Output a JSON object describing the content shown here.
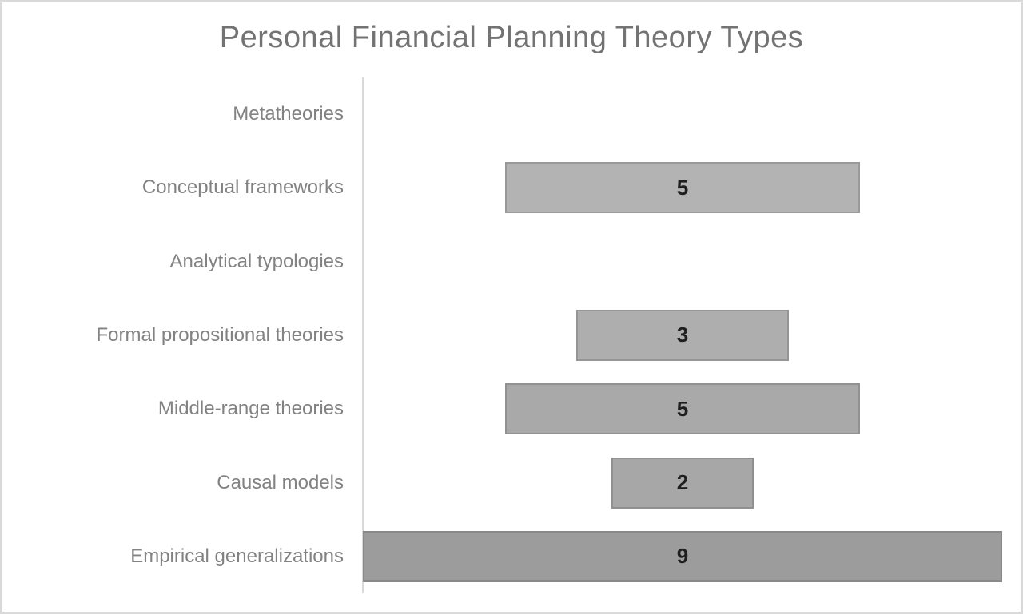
{
  "chart_data": {
    "type": "bar",
    "subtype": "funnel-centered-horizontal-bars",
    "title": "Personal Financial Planning Theory Types",
    "categories": [
      "Metatheories",
      "Conceptual frameworks",
      "Analytical typologies",
      "Formal propositional theories",
      "Middle-range theories",
      "Causal models",
      "Empirical generalizations"
    ],
    "values": [
      null,
      5,
      null,
      3,
      5,
      2,
      9
    ],
    "data_labels": [
      "",
      "5",
      "",
      "3",
      "5",
      "2",
      "9"
    ],
    "xlim": [
      0,
      9
    ],
    "grid": "off",
    "legend": "none",
    "bar_fill_colors": [
      null,
      "#b3b3b3",
      null,
      "#aeaeae",
      "#a9a9a9",
      "#a7a7a7",
      "#9c9c9c"
    ],
    "bar_border_colors": [
      null,
      "#999999",
      null,
      "#959595",
      "#929292",
      "#909090",
      "#888888"
    ],
    "title_color": "#737373",
    "category_label_color": "#828282",
    "value_label_color": "#1f1f1f",
    "axis_line_color": "#d9d9d9",
    "page_border_color": "#d9d9d9",
    "background_color": "#ffffff"
  }
}
